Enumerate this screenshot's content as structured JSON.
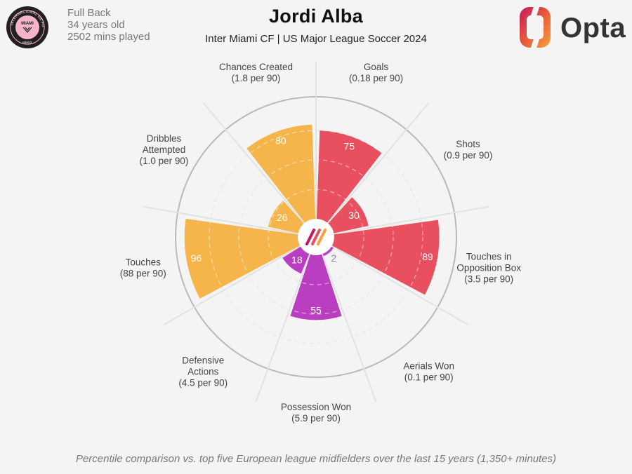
{
  "header": {
    "position": "Full Back",
    "age": "34 years old",
    "minutes": "2502 mins played",
    "player_name": "Jordi Alba",
    "subtitle": "Inter Miami CF | US Major League Soccer 2024"
  },
  "brand": {
    "name": "Opta"
  },
  "club_badge": {
    "ring_text": "CLUB INTERNACIONAL DE FUTBOL",
    "center_text": "MIAMI",
    "year_text": "MMXX"
  },
  "footnote": "Percentile comparison vs. top five European league midfielders over the last 15 years (1,350+ minutes)",
  "colors": {
    "attacking": "#e8505f",
    "possession": "#f5b54a",
    "defending": "#b93fc0",
    "ring": "#b9b9b9",
    "background": "#f4f4f4"
  },
  "chart_data": {
    "type": "radar",
    "scale_max": 100,
    "gridlines": [
      25,
      50,
      75
    ],
    "series": [
      {
        "name": "Goals",
        "sub": "(0.18 per 90)",
        "value": 75,
        "group": "attacking"
      },
      {
        "name": "Shots",
        "sub": "(0.9 per 90)",
        "value": 30,
        "group": "attacking"
      },
      {
        "name": "Touches in Opposition Box",
        "label_lines": [
          "Touches in",
          "Opposition Box"
        ],
        "sub": "(3.5 per 90)",
        "value": 89,
        "group": "attacking"
      },
      {
        "name": "Aerials Won",
        "sub": "(0.1 per 90)",
        "value": 2,
        "group": "defending"
      },
      {
        "name": "Possession Won",
        "sub": "(5.9 per 90)",
        "value": 55,
        "group": "defending"
      },
      {
        "name": "Defensive Actions",
        "label_lines": [
          "Defensive",
          "Actions"
        ],
        "sub": "(4.5 per 90)",
        "value": 18,
        "group": "defending"
      },
      {
        "name": "Touches",
        "sub": "(88 per 90)",
        "value": 96,
        "group": "possession"
      },
      {
        "name": "Dribbles Attempted",
        "label_lines": [
          "Dribbles",
          "Attempted"
        ],
        "sub": "(1.0 per 90)",
        "value": 26,
        "group": "possession"
      },
      {
        "name": "Chances Created",
        "sub": "(1.8 per 90)",
        "value": 80,
        "group": "possession"
      }
    ]
  }
}
